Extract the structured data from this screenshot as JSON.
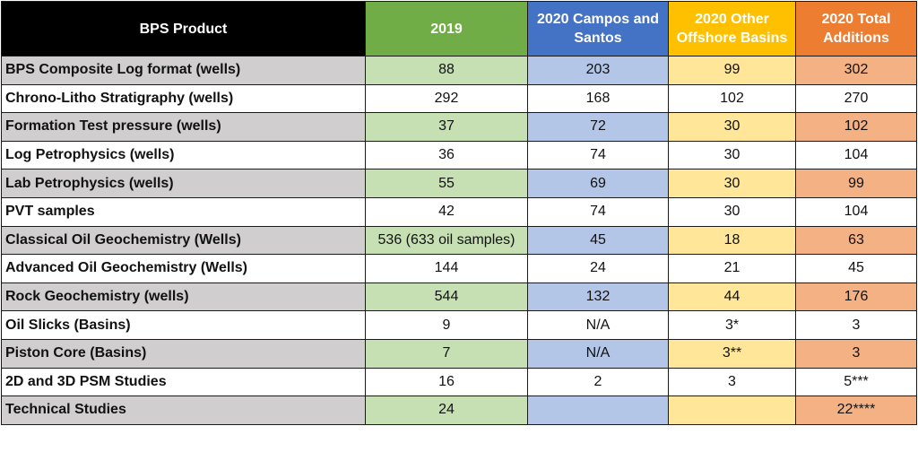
{
  "headers": {
    "product": "BPS Product",
    "y2019": "2019",
    "campos_santos": "2020 Campos and Santos",
    "other_offshore": "2020 Other Offshore Basins",
    "total_additions": "2020 Total Additions"
  },
  "rows": [
    {
      "product": "BPS Composite Log format (wells)",
      "y2019": "88",
      "campos_santos": "203",
      "other_offshore": "99",
      "total": "302"
    },
    {
      "product": "Chrono-Litho Stratigraphy (wells)",
      "y2019": "292",
      "campos_santos": "168",
      "other_offshore": "102",
      "total": "270"
    },
    {
      "product": "Formation Test pressure (wells)",
      "y2019": "37",
      "campos_santos": "72",
      "other_offshore": "30",
      "total": "102"
    },
    {
      "product": "Log Petrophysics (wells)",
      "y2019": "36",
      "campos_santos": "74",
      "other_offshore": "30",
      "total": "104"
    },
    {
      "product": "Lab Petrophysics (wells)",
      "y2019": "55",
      "campos_santos": "69",
      "other_offshore": "30",
      "total": "99"
    },
    {
      "product": "PVT samples",
      "y2019": "42",
      "campos_santos": "74",
      "other_offshore": "30",
      "total": "104"
    },
    {
      "product": "Classical Oil Geochemistry (Wells)",
      "y2019": "536 (633 oil samples)",
      "campos_santos": "45",
      "other_offshore": "18",
      "total": "63"
    },
    {
      "product": "Advanced Oil Geochemistry (Wells)",
      "y2019": "144",
      "campos_santos": "24",
      "other_offshore": "21",
      "total": "45"
    },
    {
      "product": "Rock Geochemistry (wells)",
      "y2019": "544",
      "campos_santos": "132",
      "other_offshore": "44",
      "total": "176"
    },
    {
      "product": "Oil Slicks (Basins)",
      "y2019": "9",
      "campos_santos": "N/A",
      "other_offshore": "3*",
      "total": "3"
    },
    {
      "product": "Piston Core (Basins)",
      "y2019": "7",
      "campos_santos": "N/A",
      "other_offshore": "3**",
      "total": "3"
    },
    {
      "product": "2D and 3D PSM Studies",
      "y2019": "16",
      "campos_santos": "2",
      "other_offshore": "3",
      "total": "5***"
    },
    {
      "product": "Technical Studies",
      "y2019": "24",
      "campos_santos": "",
      "other_offshore": "",
      "total": "22****"
    }
  ],
  "colors": {
    "header_product": "#000000",
    "header_2019": "#70ad47",
    "header_campos_santos": "#4472c4",
    "header_other_offshore": "#ffc000",
    "header_total": "#ed7d31",
    "shade_product": "#d0cece",
    "shade_2019": "#c6e0b4",
    "shade_campos_santos": "#b4c6e7",
    "shade_other_offshore": "#ffe699",
    "shade_total": "#f4b183"
  }
}
